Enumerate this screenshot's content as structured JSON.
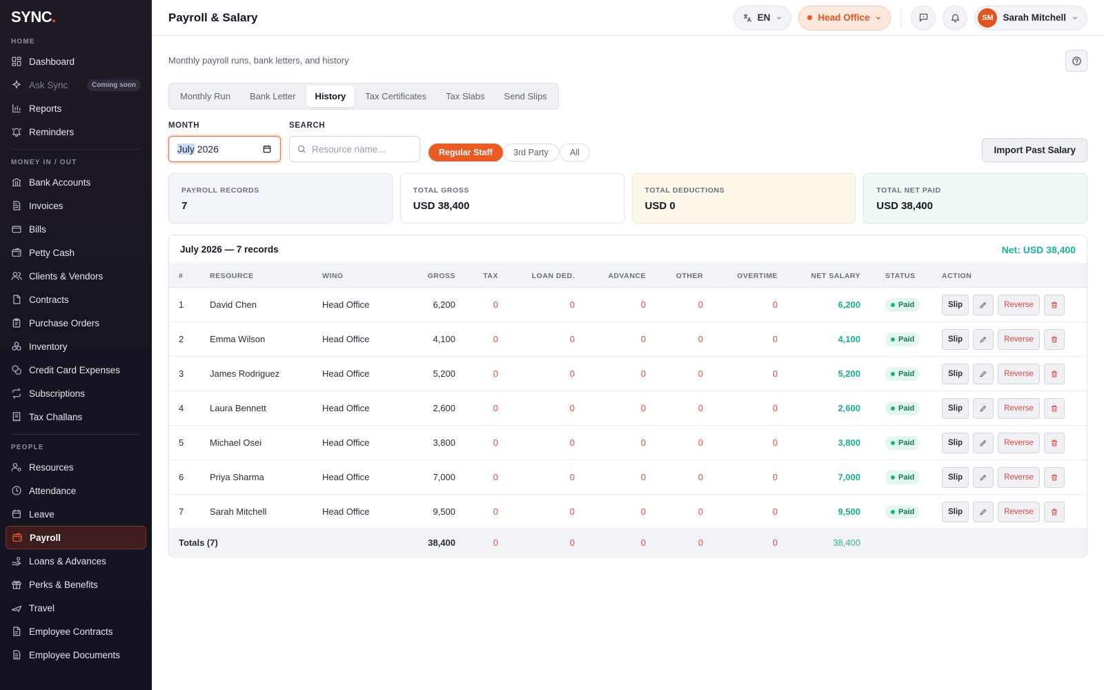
{
  "brand": {
    "name": "SYNC",
    "dot": "."
  },
  "sidebar": {
    "sections": [
      {
        "label": "HOME",
        "items": [
          {
            "label": "Dashboard",
            "icon": "grid-icon"
          },
          {
            "label": "Ask Sync",
            "icon": "sparkle-icon",
            "badge": "Coming soon",
            "disabled": true
          },
          {
            "label": "Reports",
            "icon": "bar-chart-icon"
          },
          {
            "label": "Reminders",
            "icon": "bell-ring-icon"
          }
        ]
      },
      {
        "label": "MONEY IN / OUT",
        "items": [
          {
            "label": "Bank Accounts",
            "icon": "bank-icon"
          },
          {
            "label": "Invoices",
            "icon": "file-text-icon"
          },
          {
            "label": "Bills",
            "icon": "credit-card-icon"
          },
          {
            "label": "Petty Cash",
            "icon": "wallet-icon"
          },
          {
            "label": "Clients & Vendors",
            "icon": "users-icon"
          },
          {
            "label": "Contracts",
            "icon": "document-icon"
          },
          {
            "label": "Purchase Orders",
            "icon": "clipboard-icon"
          },
          {
            "label": "Inventory",
            "icon": "boxes-icon"
          },
          {
            "label": "Credit Card Expenses",
            "icon": "coins-icon"
          },
          {
            "label": "Subscriptions",
            "icon": "repeat-icon"
          },
          {
            "label": "Tax Challans",
            "icon": "receipt-icon"
          }
        ]
      },
      {
        "label": "PEOPLE",
        "items": [
          {
            "label": "Resources",
            "icon": "user-gear-icon"
          },
          {
            "label": "Attendance",
            "icon": "clock-icon"
          },
          {
            "label": "Leave",
            "icon": "calendar-icon"
          },
          {
            "label": "Payroll",
            "icon": "wallet-icon",
            "active": true
          },
          {
            "label": "Loans & Advances",
            "icon": "hand-coins-icon"
          },
          {
            "label": "Perks & Benefits",
            "icon": "gift-icon"
          },
          {
            "label": "Travel",
            "icon": "plane-icon"
          },
          {
            "label": "Employee Contracts",
            "icon": "contract-icon"
          },
          {
            "label": "Employee Documents",
            "icon": "folder-doc-icon"
          }
        ]
      }
    ]
  },
  "header": {
    "title": "Payroll & Salary",
    "language": "EN",
    "office": "Head Office",
    "user": {
      "name": "Sarah Mitchell",
      "initials": "SM"
    }
  },
  "page": {
    "subtitle": "Monthly payroll runs, bank letters, and history",
    "tabs": [
      "Monthly Run",
      "Bank Letter",
      "History",
      "Tax Certificates",
      "Tax Slabs",
      "Send Slips"
    ],
    "active_tab": "History",
    "month_label": "MONTH",
    "month_value_selected": "July",
    "month_value_rest": "2026",
    "search_label": "SEARCH",
    "search_placeholder": "Resource name...",
    "filters": [
      "Regular Staff",
      "3rd Party",
      "All"
    ],
    "active_filter": "Regular Staff",
    "import_button": "Import Past Salary"
  },
  "summary": [
    {
      "label": "PAYROLL RECORDS",
      "value": "7"
    },
    {
      "label": "TOTAL GROSS",
      "value": "USD 38,400"
    },
    {
      "label": "TOTAL DEDUCTIONS",
      "value": "USD 0"
    },
    {
      "label": "TOTAL NET PAID",
      "value": "USD 38,400"
    }
  ],
  "table": {
    "title": "July 2026 — 7 records",
    "net_total": "Net: USD 38,400",
    "columns": [
      "#",
      "RESOURCE",
      "WING",
      "GROSS",
      "TAX",
      "LOAN DED.",
      "ADVANCE",
      "OTHER",
      "OVERTIME",
      "NET SALARY",
      "STATUS",
      "ACTION"
    ],
    "rows": [
      {
        "n": "1",
        "resource": "David Chen",
        "wing": "Head Office",
        "gross": "6,200",
        "tax": "0",
        "loan": "0",
        "advance": "0",
        "other": "0",
        "overtime": "0",
        "net": "6,200",
        "status": "Paid"
      },
      {
        "n": "2",
        "resource": "Emma Wilson",
        "wing": "Head Office",
        "gross": "4,100",
        "tax": "0",
        "loan": "0",
        "advance": "0",
        "other": "0",
        "overtime": "0",
        "net": "4,100",
        "status": "Paid"
      },
      {
        "n": "3",
        "resource": "James Rodriguez",
        "wing": "Head Office",
        "gross": "5,200",
        "tax": "0",
        "loan": "0",
        "advance": "0",
        "other": "0",
        "overtime": "0",
        "net": "5,200",
        "status": "Paid"
      },
      {
        "n": "4",
        "resource": "Laura Bennett",
        "wing": "Head Office",
        "gross": "2,600",
        "tax": "0",
        "loan": "0",
        "advance": "0",
        "other": "0",
        "overtime": "0",
        "net": "2,600",
        "status": "Paid"
      },
      {
        "n": "5",
        "resource": "Michael Osei",
        "wing": "Head Office",
        "gross": "3,800",
        "tax": "0",
        "loan": "0",
        "advance": "0",
        "other": "0",
        "overtime": "0",
        "net": "3,800",
        "status": "Paid"
      },
      {
        "n": "6",
        "resource": "Priya Sharma",
        "wing": "Head Office",
        "gross": "7,000",
        "tax": "0",
        "loan": "0",
        "advance": "0",
        "other": "0",
        "overtime": "0",
        "net": "7,000",
        "status": "Paid"
      },
      {
        "n": "7",
        "resource": "Sarah Mitchell",
        "wing": "Head Office",
        "gross": "9,500",
        "tax": "0",
        "loan": "0",
        "advance": "0",
        "other": "0",
        "overtime": "0",
        "net": "9,500",
        "status": "Paid"
      }
    ],
    "actions": {
      "slip": "Slip",
      "reverse": "Reverse"
    },
    "totals": {
      "label": "Totals (7)",
      "gross": "38,400",
      "tax": "0",
      "loan": "0",
      "advance": "0",
      "other": "0",
      "overtime": "0",
      "net": "38,400"
    }
  },
  "colors": {
    "accent": "#ec5a24",
    "net_green": "#14b38f",
    "deduction_red": "#e04a3c",
    "sidebar_bg": "#181521"
  }
}
